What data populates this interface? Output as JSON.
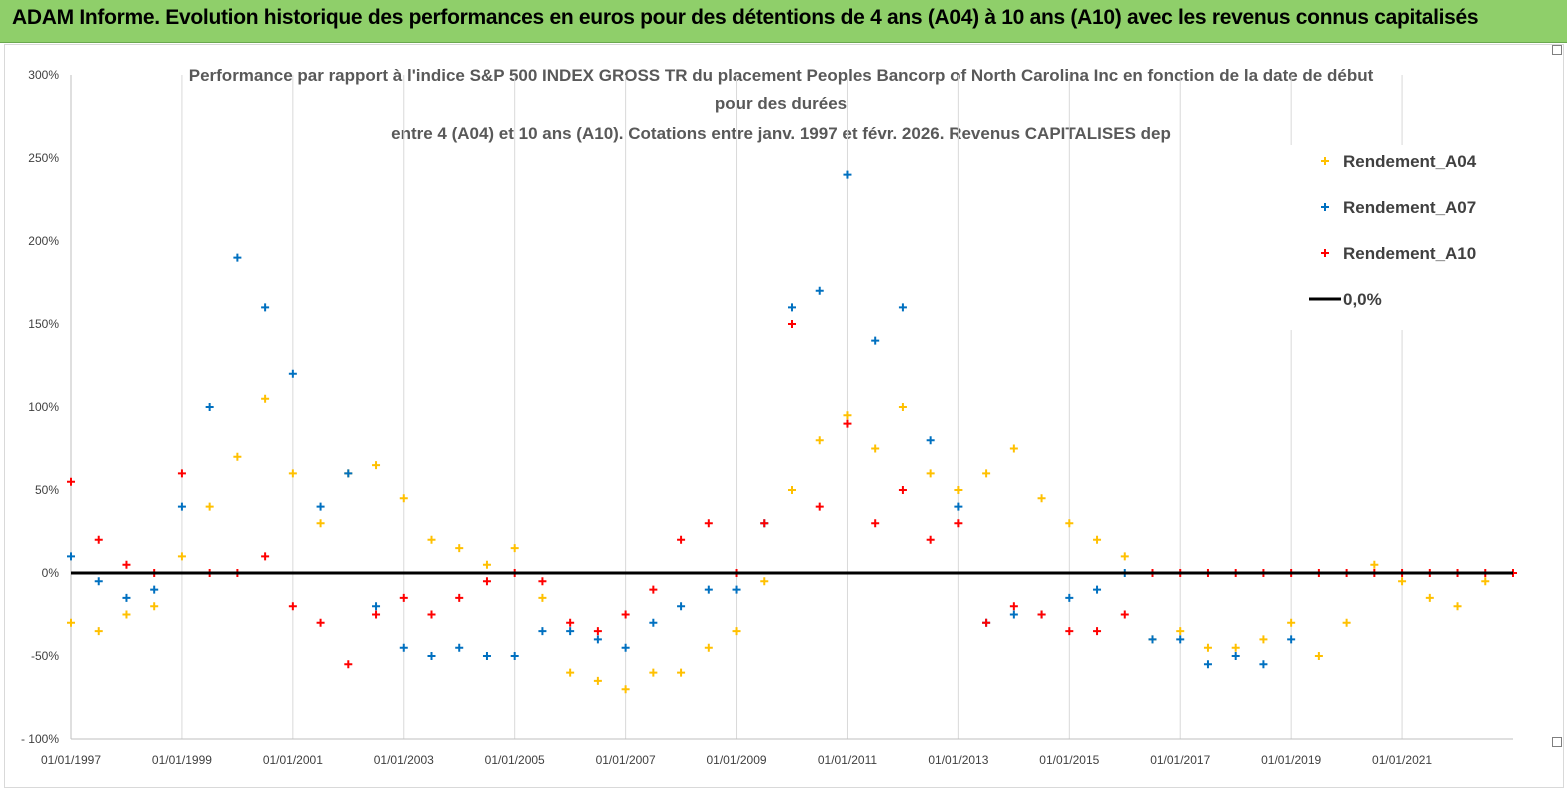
{
  "banner": {
    "title": "ADAM Informe. Evolution historique des performances en euros pour des détentions de 4 ans (A04) à 10 ans (A10) avec les revenus connus capitalisés"
  },
  "colors": {
    "banner_bg": "#8fcf6a",
    "A04": "#ffc000",
    "A07": "#0070c0",
    "A10": "#ff0000",
    "zero_line": "#000000"
  },
  "chart_data": {
    "type": "scatter",
    "title_lines": [
      "Performance par rapport à l'indice S&P 500 INDEX GROSS TR  du placement Peoples Bancorp of North Carolina Inc en fonction de la date de début",
      "pour des durées",
      "entre 4 (A04) et 10 ans (A10). Cotations entre janv. 1997 et févr. 2026. Revenus CAPITALISES dep"
    ],
    "x_range": [
      1997.0,
      2023.0
    ],
    "y_range": [
      -100,
      300
    ],
    "y_ticks": [
      "300%",
      "250%",
      "200%",
      "150%",
      "100%",
      "50%",
      "0%",
      "-50%",
      "- 100%"
    ],
    "y_tick_values": [
      300,
      250,
      200,
      150,
      100,
      50,
      0,
      -50,
      -100
    ],
    "x_ticks": [
      "01/01/1997",
      "01/01/1999",
      "01/01/2001",
      "01/01/2003",
      "01/01/2005",
      "01/01/2007",
      "01/01/2009",
      "01/01/2011",
      "01/01/2013",
      "01/01/2015",
      "01/01/2017",
      "01/01/2019",
      "01/01/2021"
    ],
    "x_tick_values": [
      1997,
      1999,
      2001,
      2003,
      2005,
      2007,
      2009,
      2011,
      2013,
      2015,
      2017,
      2019,
      2021
    ],
    "legend": [
      "Rendement_A04",
      "Rendement_A07",
      "Rendement_A10",
      "0,0%"
    ],
    "series": [
      {
        "name": "Rendement_A04",
        "key": "A04",
        "x": [
          1997.0,
          1997.5,
          1998.0,
          1998.5,
          1999.0,
          1999.5,
          2000.0,
          2000.5,
          2001.0,
          2001.5,
          2002.0,
          2002.5,
          2003.0,
          2003.5,
          2004.0,
          2004.5,
          2005.0,
          2005.5,
          2006.0,
          2006.5,
          2007.0,
          2007.5,
          2008.0,
          2008.5,
          2009.0,
          2009.5,
          2010.0,
          2010.5,
          2011.0,
          2011.5,
          2012.0,
          2012.5,
          2013.0,
          2013.5,
          2014.0,
          2014.5,
          2015.0,
          2015.5,
          2016.0,
          2016.5,
          2017.0,
          2017.5,
          2018.0,
          2018.5,
          2019.0,
          2019.5,
          2020.0,
          2020.5,
          2021.0,
          2021.5,
          2022.0,
          2022.5
        ],
        "y": [
          -30,
          -35,
          -25,
          -20,
          10,
          40,
          70,
          105,
          60,
          30,
          60,
          65,
          45,
          20,
          15,
          5,
          15,
          -15,
          -60,
          -65,
          -70,
          -60,
          -60,
          -45,
          -35,
          -5,
          50,
          80,
          95,
          75,
          100,
          60,
          50,
          60,
          75,
          45,
          30,
          20,
          10,
          -40,
          -35,
          -45,
          -45,
          -40,
          -30,
          -50,
          -30,
          5,
          -5,
          -15,
          -20,
          -5
        ]
      },
      {
        "name": "Rendement_A07",
        "key": "A07",
        "x": [
          1997.0,
          1997.5,
          1998.0,
          1998.5,
          1999.0,
          1999.5,
          2000.0,
          2000.5,
          2001.0,
          2001.5,
          2002.0,
          2002.5,
          2003.0,
          2003.5,
          2004.0,
          2004.5,
          2005.0,
          2005.5,
          2006.0,
          2006.5,
          2007.0,
          2007.5,
          2008.0,
          2008.5,
          2009.0,
          2009.5,
          2010.0,
          2010.5,
          2011.0,
          2011.5,
          2012.0,
          2012.5,
          2013.0,
          2013.5,
          2014.0,
          2014.5,
          2015.0,
          2015.5,
          2016.0,
          2016.5,
          2017.0,
          2017.5,
          2018.0,
          2018.5,
          2019.0
        ],
        "y": [
          10,
          -5,
          -15,
          -10,
          40,
          100,
          190,
          160,
          120,
          40,
          60,
          -20,
          -45,
          -50,
          -45,
          -50,
          -50,
          -35,
          -35,
          -40,
          -45,
          -30,
          -20,
          -10,
          -10,
          30,
          160,
          170,
          240,
          140,
          160,
          80,
          40,
          -30,
          -25,
          -25,
          -15,
          -10,
          0,
          -40,
          -40,
          -55,
          -50,
          -55,
          -40
        ]
      },
      {
        "name": "Rendement_A10",
        "key": "A10",
        "x": [
          1997.0,
          1997.5,
          1998.0,
          1998.5,
          1999.0,
          1999.5,
          2000.0,
          2000.5,
          2001.0,
          2001.5,
          2002.0,
          2002.5,
          2003.0,
          2003.5,
          2004.0,
          2004.5,
          2005.0,
          2005.5,
          2006.0,
          2006.5,
          2007.0,
          2007.5,
          2008.0,
          2008.5,
          2009.0,
          2009.5,
          2010.0,
          2010.5,
          2011.0,
          2011.5,
          2012.0,
          2012.5,
          2013.0,
          2013.5,
          2014.0,
          2014.5,
          2015.0,
          2015.5,
          2016.0,
          2016.5,
          2017.0,
          2017.5,
          2018.0,
          2018.5,
          2019.0,
          2019.5,
          2020.0,
          2020.5,
          2021.0,
          2021.5,
          2022.0,
          2022.5,
          2023.0
        ],
        "y": [
          55,
          20,
          5,
          0,
          60,
          0,
          0,
          10,
          -20,
          -30,
          -55,
          -25,
          -15,
          -25,
          -15,
          -5,
          0,
          -5,
          -30,
          -35,
          -25,
          -10,
          20,
          30,
          0,
          30,
          150,
          40,
          90,
          30,
          50,
          20,
          30,
          -30,
          -20,
          -25,
          -35,
          -35,
          -25,
          0,
          0,
          0,
          0,
          0,
          0,
          0,
          0,
          0,
          0,
          0,
          0,
          0,
          0
        ]
      },
      {
        "name": "0,0%",
        "key": "zero",
        "x": [
          1997.0,
          2023.0
        ],
        "y": [
          0,
          0
        ]
      }
    ]
  }
}
